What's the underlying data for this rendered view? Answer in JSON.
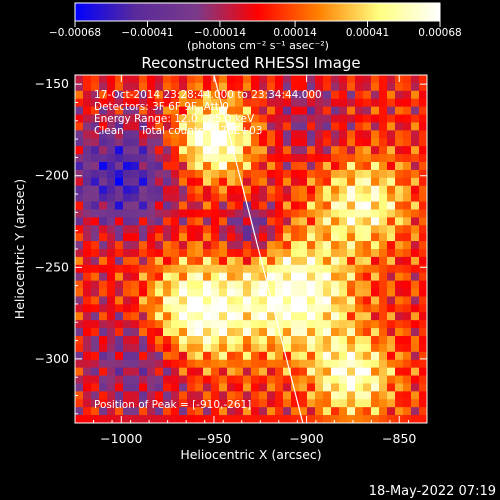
{
  "chart_data": {
    "type": "heatmap",
    "title": "Reconstructed RHESSI Image",
    "xlabel": "Heliocentric X (arcsec)",
    "ylabel": "Heliocentric Y (arcsec)",
    "xlim": [
      -1025,
      -835
    ],
    "ylim": [
      -335,
      -145
    ],
    "x_ticks": [
      -1000,
      -950,
      -900,
      -850
    ],
    "x_tick_labels": [
      "−1000",
      "−950",
      "−900",
      "−850"
    ],
    "y_ticks": [
      -150,
      -200,
      -250,
      -300
    ],
    "y_tick_labels": [
      "−150",
      "−200",
      "−250",
      "−300"
    ],
    "colorbar": {
      "range": [
        -0.00068,
        0.00068
      ],
      "ticks": [
        -0.00068,
        -0.00041,
        -0.00014,
        0.00014,
        0.00041,
        0.00068
      ],
      "tick_labels": [
        "−0.00068",
        "−0.00041",
        "−0.00014",
        "0.00014",
        "0.00041",
        "0.00068"
      ],
      "unit_label": "(photons cm⁻² s⁻¹ asec⁻²)",
      "stops": [
        "#0000ff",
        "#5a2a9a",
        "#7a3a8a",
        "#ff0000",
        "#ff8000",
        "#ffff80",
        "#ffffff"
      ]
    },
    "annotations": [
      "17-Oct-2014 23:28:44.000 to 23:34:44.000",
      "Detectors: 3F 6F 9F, Att 0",
      "Energy Range: 12.0 - 25.0 keV",
      "Clean     Total counts: 2.78E+03"
    ],
    "peak_label": "Position of Peak = [-910,-261]",
    "limb_line": [
      [
        -950,
        -145
      ],
      [
        -902,
        -335
      ]
    ],
    "grid": false
  },
  "footer": {
    "date": "18-May-2022 07:19"
  }
}
